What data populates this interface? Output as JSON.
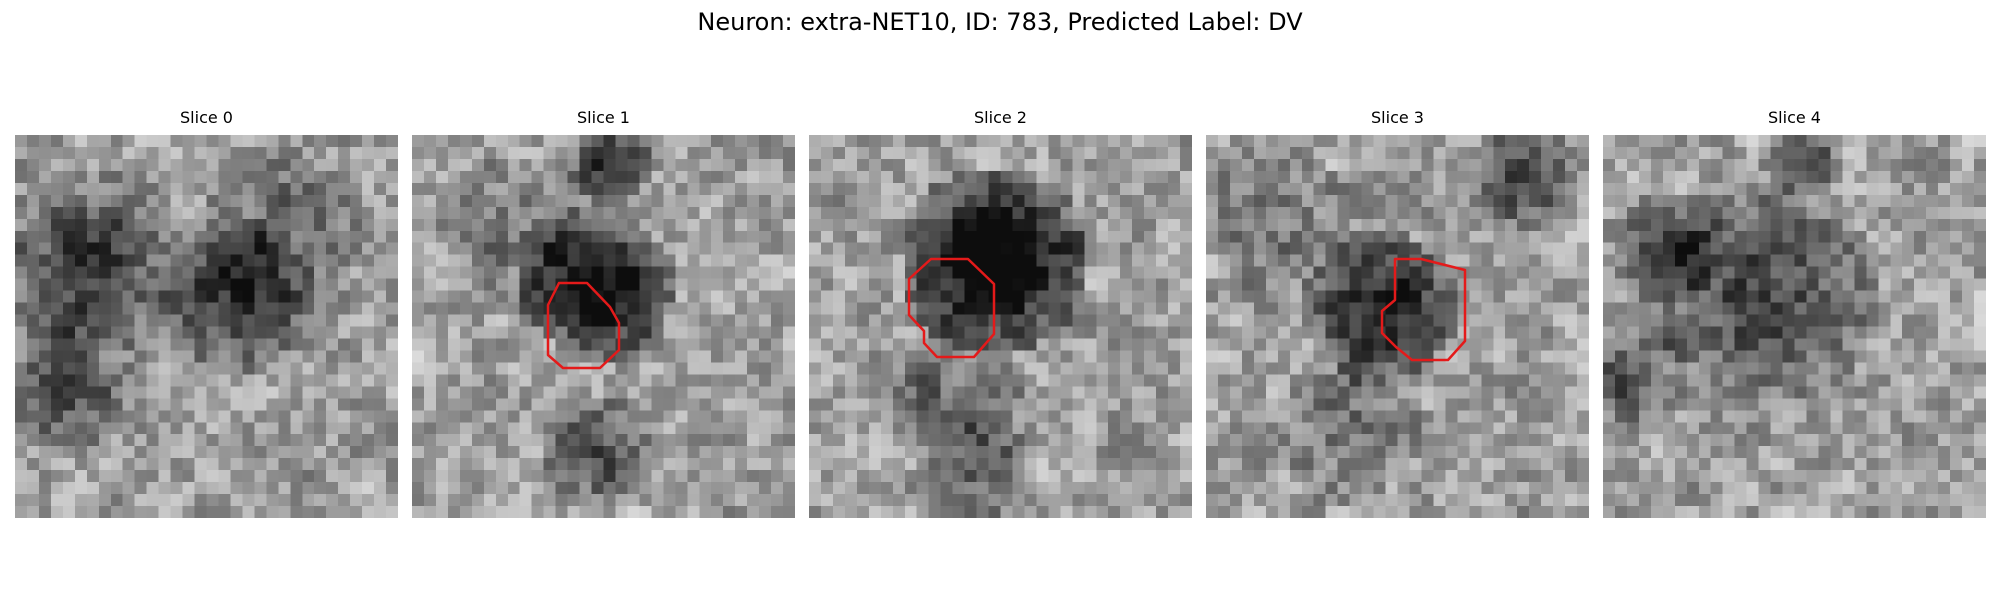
{
  "figure": {
    "title": "Neuron: extra-NET10, ID: 783, Predicted Label: DV"
  },
  "slices": [
    {
      "title": "Slice 0",
      "roi": false
    },
    {
      "title": "Slice 1",
      "roi": true
    },
    {
      "title": "Slice 2",
      "roi": true
    },
    {
      "title": "Slice 3",
      "roi": true
    },
    {
      "title": "Slice 4",
      "roi": false
    }
  ],
  "colors": {
    "roi_outline": "#e41a1a",
    "background": "#ffffff"
  },
  "image": {
    "colormap": "grayscale",
    "grid_size": 32
  }
}
